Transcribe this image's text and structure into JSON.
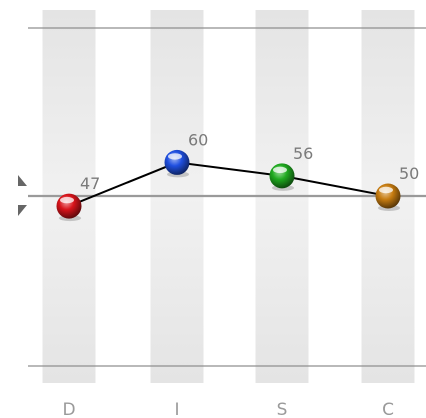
{
  "chart_data": {
    "type": "line",
    "categories": [
      "D",
      "I",
      "S",
      "C"
    ],
    "values": [
      47,
      60,
      56,
      50
    ],
    "data_labels": [
      "47",
      "60",
      "56",
      "50"
    ],
    "ylim": [
      0,
      100
    ],
    "reference_line": 50,
    "grid": true,
    "line_color": "#000000",
    "marker_colors": [
      "#d8131a",
      "#1f4fe0",
      "#1faa1f",
      "#c77c10"
    ],
    "band_color": "#e9e9e9"
  }
}
